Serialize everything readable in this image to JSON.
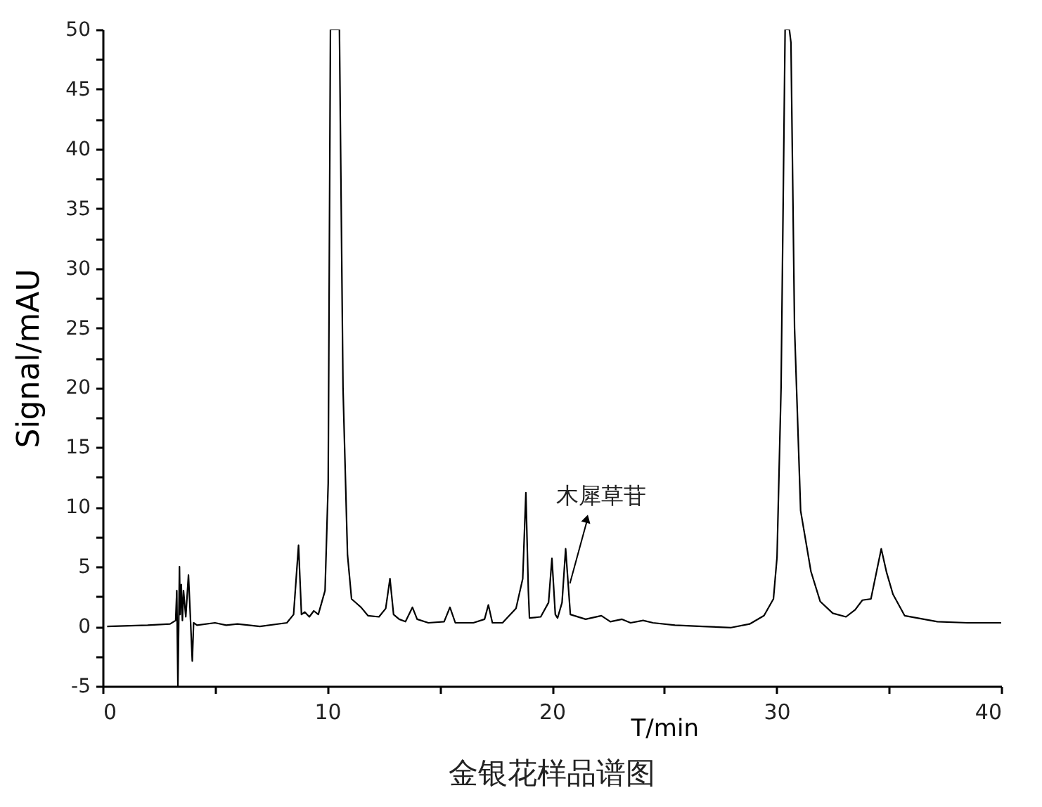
{
  "chart_data": {
    "type": "line",
    "title": "金银花样品谱图",
    "xlabel": "T/min",
    "ylabel": "Signal/mAU",
    "xlim": [
      0,
      40
    ],
    "ylim": [
      -5,
      50
    ],
    "xticks": [
      0,
      {
        "value": 5,
        "label": null
      },
      10,
      {
        "value": 15,
        "label": null
      },
      20,
      {
        "value": 25,
        "label": null
      },
      30,
      {
        "value": 35,
        "label": null
      },
      40
    ],
    "yticks": [
      -5,
      {
        "value": -2.5,
        "label": null
      },
      0,
      {
        "value": 2.5,
        "label": null
      },
      5,
      {
        "value": 7.5,
        "label": null
      },
      10,
      {
        "value": 12.5,
        "label": null
      },
      15,
      {
        "value": 17.5,
        "label": null
      },
      20,
      {
        "value": 22.5,
        "label": null
      },
      25,
      {
        "value": 27.5,
        "label": null
      },
      30,
      {
        "value": 32.5,
        "label": null
      },
      35,
      {
        "value": 37.5,
        "label": null
      },
      40,
      {
        "value": 42.5,
        "label": null
      },
      45,
      {
        "value": 47.5,
        "label": null
      },
      50
    ],
    "grid": false,
    "marker": "none",
    "line_style": "solid",
    "annotations": [
      {
        "text": "木犀草苷",
        "x": 20.8,
        "y": 3.6
      }
    ],
    "series": [
      {
        "color": "#000000",
        "x": [
          0.2,
          2.0,
          3.0,
          3.25,
          3.3,
          3.35,
          3.42,
          3.45,
          3.5,
          3.55,
          3.6,
          3.7,
          3.82,
          3.9,
          3.99,
          4.05,
          4.2,
          5.0,
          5.5,
          6.0,
          7.0,
          8.2,
          8.5,
          8.72,
          8.85,
          9.0,
          9.2,
          9.4,
          9.6,
          9.9,
          10.04,
          10.14,
          10.54,
          10.7,
          10.9,
          11.08,
          11.5,
          11.81,
          12.3,
          12.6,
          12.79,
          12.95,
          13.2,
          13.48,
          13.79,
          14.0,
          14.5,
          15.2,
          15.46,
          15.7,
          16.5,
          17.0,
          17.17,
          17.35,
          17.8,
          18.4,
          18.7,
          18.84,
          18.95,
          19.0,
          19.5,
          19.85,
          20.0,
          20.15,
          20.25,
          20.45,
          20.61,
          20.82,
          21.5,
          22.2,
          22.6,
          23.12,
          23.5,
          24.06,
          24.5,
          25.48,
          26.7,
          27.98,
          28.8,
          29.44,
          29.86,
          30.02,
          30.2,
          30.38,
          30.57,
          30.64,
          30.8,
          31.07,
          31.53,
          31.94,
          32.5,
          33.09,
          33.5,
          33.82,
          34.2,
          34.66,
          34.9,
          35.18,
          35.7,
          37.16,
          38.5,
          40.0
        ],
        "values": [
          0.0,
          0.1,
          0.2,
          0.5,
          3.0,
          -5.0,
          5.0,
          1.0,
          3.5,
          0.5,
          3.0,
          0.8,
          4.3,
          1.0,
          -2.9,
          0.3,
          0.1,
          0.3,
          0.1,
          0.2,
          0.0,
          0.3,
          1.0,
          6.8,
          1.0,
          1.2,
          0.8,
          1.3,
          1.0,
          3.0,
          12.0,
          50.0,
          50.0,
          20.0,
          6.0,
          2.3,
          1.6,
          0.9,
          0.8,
          1.5,
          4.0,
          1.0,
          0.6,
          0.4,
          1.6,
          0.6,
          0.3,
          0.4,
          1.6,
          0.3,
          0.3,
          0.6,
          1.8,
          0.3,
          0.3,
          1.5,
          4.0,
          11.2,
          3.0,
          0.7,
          0.8,
          2.0,
          5.7,
          1.0,
          0.7,
          2.0,
          6.5,
          1.0,
          0.6,
          0.9,
          0.4,
          0.6,
          0.3,
          0.5,
          0.3,
          0.1,
          0.0,
          -0.1,
          0.2,
          0.9,
          2.3,
          5.8,
          20.0,
          50.0,
          50.0,
          48.9,
          25.0,
          9.7,
          4.6,
          2.1,
          1.1,
          0.8,
          1.4,
          2.2,
          2.3,
          6.5,
          4.5,
          2.7,
          0.9,
          0.4,
          0.3,
          0.3
        ]
      }
    ]
  }
}
